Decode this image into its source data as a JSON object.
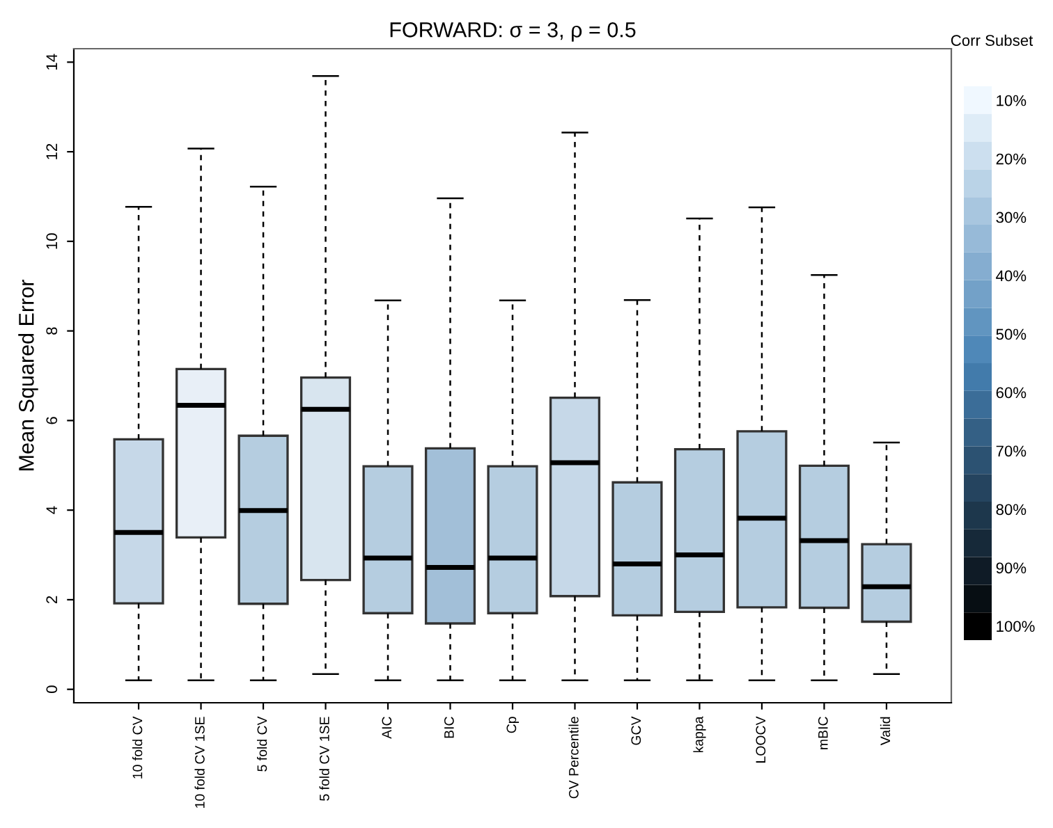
{
  "chart_data": {
    "type": "box",
    "title": "FORWARD: σ = 3, ρ = 0.5",
    "ylabel": "Mean Squared Error",
    "categories": [
      "10 fold CV",
      "10 fold CV 1SE",
      "5 fold CV",
      "5 fold CV 1SE",
      "AIC",
      "BIC",
      "Cp",
      "CV Percentile",
      "GCV",
      "kappa",
      "LOOCV",
      "mBIC",
      "Valid"
    ],
    "boxes": [
      {
        "low": 0.2,
        "q1": 1.92,
        "median": 3.5,
        "q3": 5.58,
        "high": 10.77
      },
      {
        "low": 0.2,
        "q1": 3.39,
        "median": 6.34,
        "q3": 7.15,
        "high": 12.07
      },
      {
        "low": 0.2,
        "q1": 1.91,
        "median": 3.99,
        "q3": 5.66,
        "high": 11.22
      },
      {
        "low": 0.34,
        "q1": 2.44,
        "median": 6.25,
        "q3": 6.96,
        "high": 13.69
      },
      {
        "low": 0.2,
        "q1": 1.7,
        "median": 2.93,
        "q3": 4.98,
        "high": 8.68
      },
      {
        "low": 0.2,
        "q1": 1.47,
        "median": 2.72,
        "q3": 5.38,
        "high": 10.96
      },
      {
        "low": 0.2,
        "q1": 1.7,
        "median": 2.93,
        "q3": 4.98,
        "high": 8.68
      },
      {
        "low": 0.2,
        "q1": 2.08,
        "median": 5.06,
        "q3": 6.51,
        "high": 12.43
      },
      {
        "low": 0.2,
        "q1": 1.65,
        "median": 2.8,
        "q3": 4.62,
        "high": 8.69
      },
      {
        "low": 0.2,
        "q1": 1.73,
        "median": 3.0,
        "q3": 5.36,
        "high": 10.51
      },
      {
        "low": 0.2,
        "q1": 1.83,
        "median": 3.82,
        "q3": 5.76,
        "high": 10.76
      },
      {
        "low": 0.2,
        "q1": 1.82,
        "median": 3.32,
        "q3": 4.99,
        "high": 9.25
      },
      {
        "low": 0.34,
        "q1": 1.51,
        "median": 2.29,
        "q3": 3.24,
        "high": 5.51
      }
    ],
    "colors": [
      "#c6d8e8",
      "#e8eff7",
      "#b5cde0",
      "#d8e5ef",
      "#b5cde0",
      "#a2bfd8",
      "#b5cde0",
      "#c6d8e8",
      "#b5cde0",
      "#b5cde0",
      "#b5cde0",
      "#b5cde0",
      "#b5cde0"
    ],
    "ylim": [
      -0.3,
      14.3
    ],
    "yticks": [
      0,
      2,
      4,
      6,
      8,
      10,
      12,
      14
    ],
    "clabel": "Corr Subset",
    "clim": [
      7.6,
      102.4
    ],
    "cticks": [
      {
        "value": 10,
        "label": "10%"
      },
      {
        "value": 20,
        "label": "20%"
      },
      {
        "value": 30,
        "label": "30%"
      },
      {
        "value": 40,
        "label": "40%"
      },
      {
        "value": 50,
        "label": "50%"
      },
      {
        "value": 60,
        "label": "60%"
      },
      {
        "value": 70,
        "label": "70%"
      },
      {
        "value": 80,
        "label": "80%"
      },
      {
        "value": 90,
        "label": "90%"
      },
      {
        "value": 100,
        "label": "100%"
      }
    ],
    "grid": false,
    "legend": false
  }
}
